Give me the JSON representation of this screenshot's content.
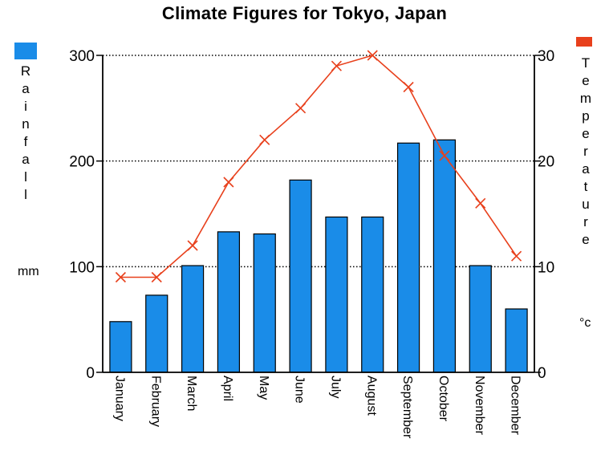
{
  "chart_data": {
    "type": "bar",
    "title": "Climate Figures for Tokyo, Japan",
    "categories": [
      "January",
      "February",
      "March",
      "April",
      "May",
      "June",
      "July",
      "August",
      "September",
      "October",
      "November",
      "December"
    ],
    "series": [
      {
        "name": "Rainfall",
        "type": "bar",
        "axis": "left",
        "color": "#1a8ce8",
        "values": [
          48,
          73,
          101,
          133,
          131,
          182,
          147,
          147,
          217,
          220,
          101,
          60
        ]
      },
      {
        "name": "Temperature",
        "type": "line",
        "axis": "right",
        "color": "#e8401c",
        "values": [
          9,
          9,
          12,
          18,
          22,
          25,
          29,
          30,
          27,
          20.5,
          16,
          11
        ]
      }
    ],
    "y_left": {
      "label": "Rainfall",
      "unit": "mm",
      "ylim": [
        0,
        300
      ],
      "ticks": [
        0,
        100,
        200,
        300
      ]
    },
    "y_right": {
      "label": "Temperature",
      "unit": "°c",
      "ylim": [
        0,
        30
      ],
      "ticks": [
        0,
        10,
        20,
        30
      ]
    },
    "grid": "horizontal-dotted",
    "legend": [
      "left-top rainfall swatch",
      "right-top temperature swatch"
    ]
  },
  "labels": {
    "title": "Climate Figures for Tokyo, Japan",
    "left_axis_title": "Rainfall",
    "left_unit": "mm",
    "right_axis_title": "Temperature",
    "right_unit": "°c"
  }
}
